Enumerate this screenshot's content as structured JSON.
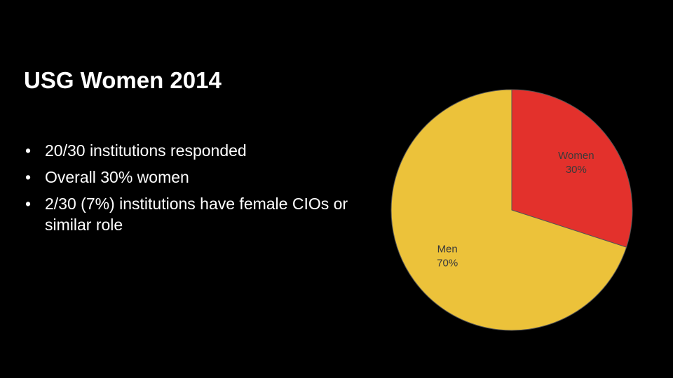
{
  "slide": {
    "title": "USG Women 2014",
    "bullets": [
      "20/30 institutions responded",
      "Overall 30% women",
      "2/30  (7%) institutions have female CIOs or similar role"
    ]
  },
  "chart_data": {
    "type": "pie",
    "categories": [
      "Women",
      "Men"
    ],
    "values": [
      30,
      70
    ],
    "value_labels": [
      "30%",
      "70%"
    ],
    "colors": [
      "#e3312c",
      "#ecc23a"
    ]
  }
}
